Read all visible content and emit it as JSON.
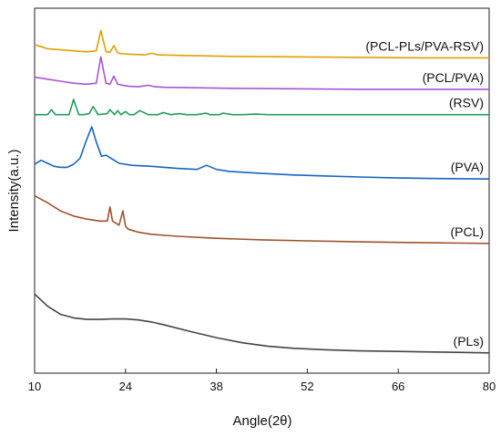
{
  "chart_data": {
    "type": "line",
    "xlabel": "Angle(2θ)",
    "ylabel": "Intensity(a.u.)",
    "xlim": [
      10,
      80
    ],
    "xticks": [
      10,
      24,
      38,
      52,
      66,
      80
    ],
    "y_ticks_shown": false,
    "grid": false,
    "series": [
      {
        "name": "(PLs)",
        "color": "#444444",
        "x": [
          10,
          12,
          14,
          16,
          18,
          20,
          22,
          24,
          26,
          28,
          30,
          34,
          38,
          42,
          46,
          50,
          55,
          60,
          65,
          70,
          75,
          80
        ],
        "y": [
          0.78,
          0.66,
          0.58,
          0.545,
          0.53,
          0.53,
          0.535,
          0.535,
          0.525,
          0.505,
          0.475,
          0.41,
          0.35,
          0.3,
          0.265,
          0.245,
          0.23,
          0.22,
          0.215,
          0.21,
          0.205,
          0.2
        ]
      },
      {
        "name": "(PCL)",
        "color": "#A0522D",
        "x": [
          10,
          12,
          14,
          16,
          18,
          20,
          21.2,
          21.6,
          22,
          23,
          23.6,
          24,
          24.4,
          26,
          28,
          32,
          38,
          45,
          52,
          60,
          66,
          72,
          80
        ],
        "y": [
          1.75,
          1.68,
          1.6,
          1.55,
          1.52,
          1.5,
          1.5,
          1.64,
          1.5,
          1.46,
          1.6,
          1.45,
          1.42,
          1.39,
          1.37,
          1.35,
          1.33,
          1.315,
          1.305,
          1.295,
          1.29,
          1.285,
          1.28
        ]
      },
      {
        "name": "(PVA)",
        "color": "#1565C0",
        "x": [
          10,
          11,
          12,
          13,
          14,
          15,
          16,
          17,
          18,
          18.8,
          19.5,
          20.3,
          21,
          22,
          23,
          25,
          28,
          32,
          35,
          36.5,
          38,
          40,
          45,
          50,
          55,
          60,
          66,
          72,
          80
        ],
        "y": [
          2.06,
          2.1,
          2.07,
          2.04,
          2.03,
          2.03,
          2.06,
          2.12,
          2.3,
          2.43,
          2.28,
          2.14,
          2.15,
          2.11,
          2.07,
          2.05,
          2.04,
          2.02,
          2.01,
          2.05,
          2.01,
          1.99,
          1.97,
          1.955,
          1.945,
          1.935,
          1.925,
          1.92,
          1.915
        ]
      },
      {
        "name": "(RSV)",
        "color": "#1E9E5A",
        "x": [
          10,
          12,
          12.6,
          13.2,
          14.5,
          15.3,
          16,
          16.8,
          17.5,
          18.4,
          19.0,
          19.8,
          21.2,
          21.6,
          22.3,
          22.8,
          23.3,
          24.0,
          24.6,
          25.3,
          26.2,
          27.5,
          29.0,
          29.8,
          31,
          32.2,
          33.5,
          35,
          36.4,
          37,
          38.4,
          39,
          40.5,
          42,
          44,
          46,
          48,
          52,
          58,
          66,
          72,
          80
        ],
        "y": [
          2.55,
          2.55,
          2.6,
          2.55,
          2.55,
          2.55,
          2.7,
          2.55,
          2.55,
          2.56,
          2.63,
          2.55,
          2.56,
          2.6,
          2.55,
          2.59,
          2.55,
          2.58,
          2.55,
          2.55,
          2.59,
          2.55,
          2.55,
          2.57,
          2.55,
          2.56,
          2.55,
          2.55,
          2.565,
          2.55,
          2.55,
          2.565,
          2.55,
          2.55,
          2.555,
          2.55,
          2.55,
          2.55,
          2.55,
          2.55,
          2.55,
          2.55
        ]
      },
      {
        "name": "(PCL/PVA)",
        "color": "#A855D6",
        "x": [
          10,
          12,
          14,
          16,
          18,
          19.5,
          20.2,
          21,
          21.6,
          22.2,
          22.8,
          23.5,
          24.5,
          26,
          27.5,
          28.5,
          30,
          35,
          40,
          50,
          60,
          70,
          80
        ],
        "y": [
          2.92,
          2.9,
          2.88,
          2.86,
          2.85,
          2.86,
          3.12,
          2.86,
          2.85,
          2.93,
          2.85,
          2.84,
          2.83,
          2.825,
          2.84,
          2.825,
          2.82,
          2.815,
          2.81,
          2.805,
          2.8,
          2.8,
          2.8
        ]
      },
      {
        "name": "(PCL-PLs/PVA-RSV)",
        "color": "#E0A000",
        "x": [
          10,
          11,
          12,
          14,
          16,
          18,
          19.5,
          20.2,
          21,
          21.6,
          22.2,
          22.8,
          23.5,
          25,
          27,
          28,
          29,
          32,
          36,
          40,
          50,
          60,
          70,
          80
        ],
        "y": [
          3.24,
          3.22,
          3.2,
          3.19,
          3.18,
          3.17,
          3.18,
          3.38,
          3.17,
          3.165,
          3.23,
          3.16,
          3.15,
          3.145,
          3.14,
          3.155,
          3.14,
          3.135,
          3.13,
          3.125,
          3.12,
          3.115,
          3.11,
          3.11
        ]
      }
    ],
    "label_positions_x": [
      77,
      77,
      77,
      77,
      75,
      72
    ]
  }
}
